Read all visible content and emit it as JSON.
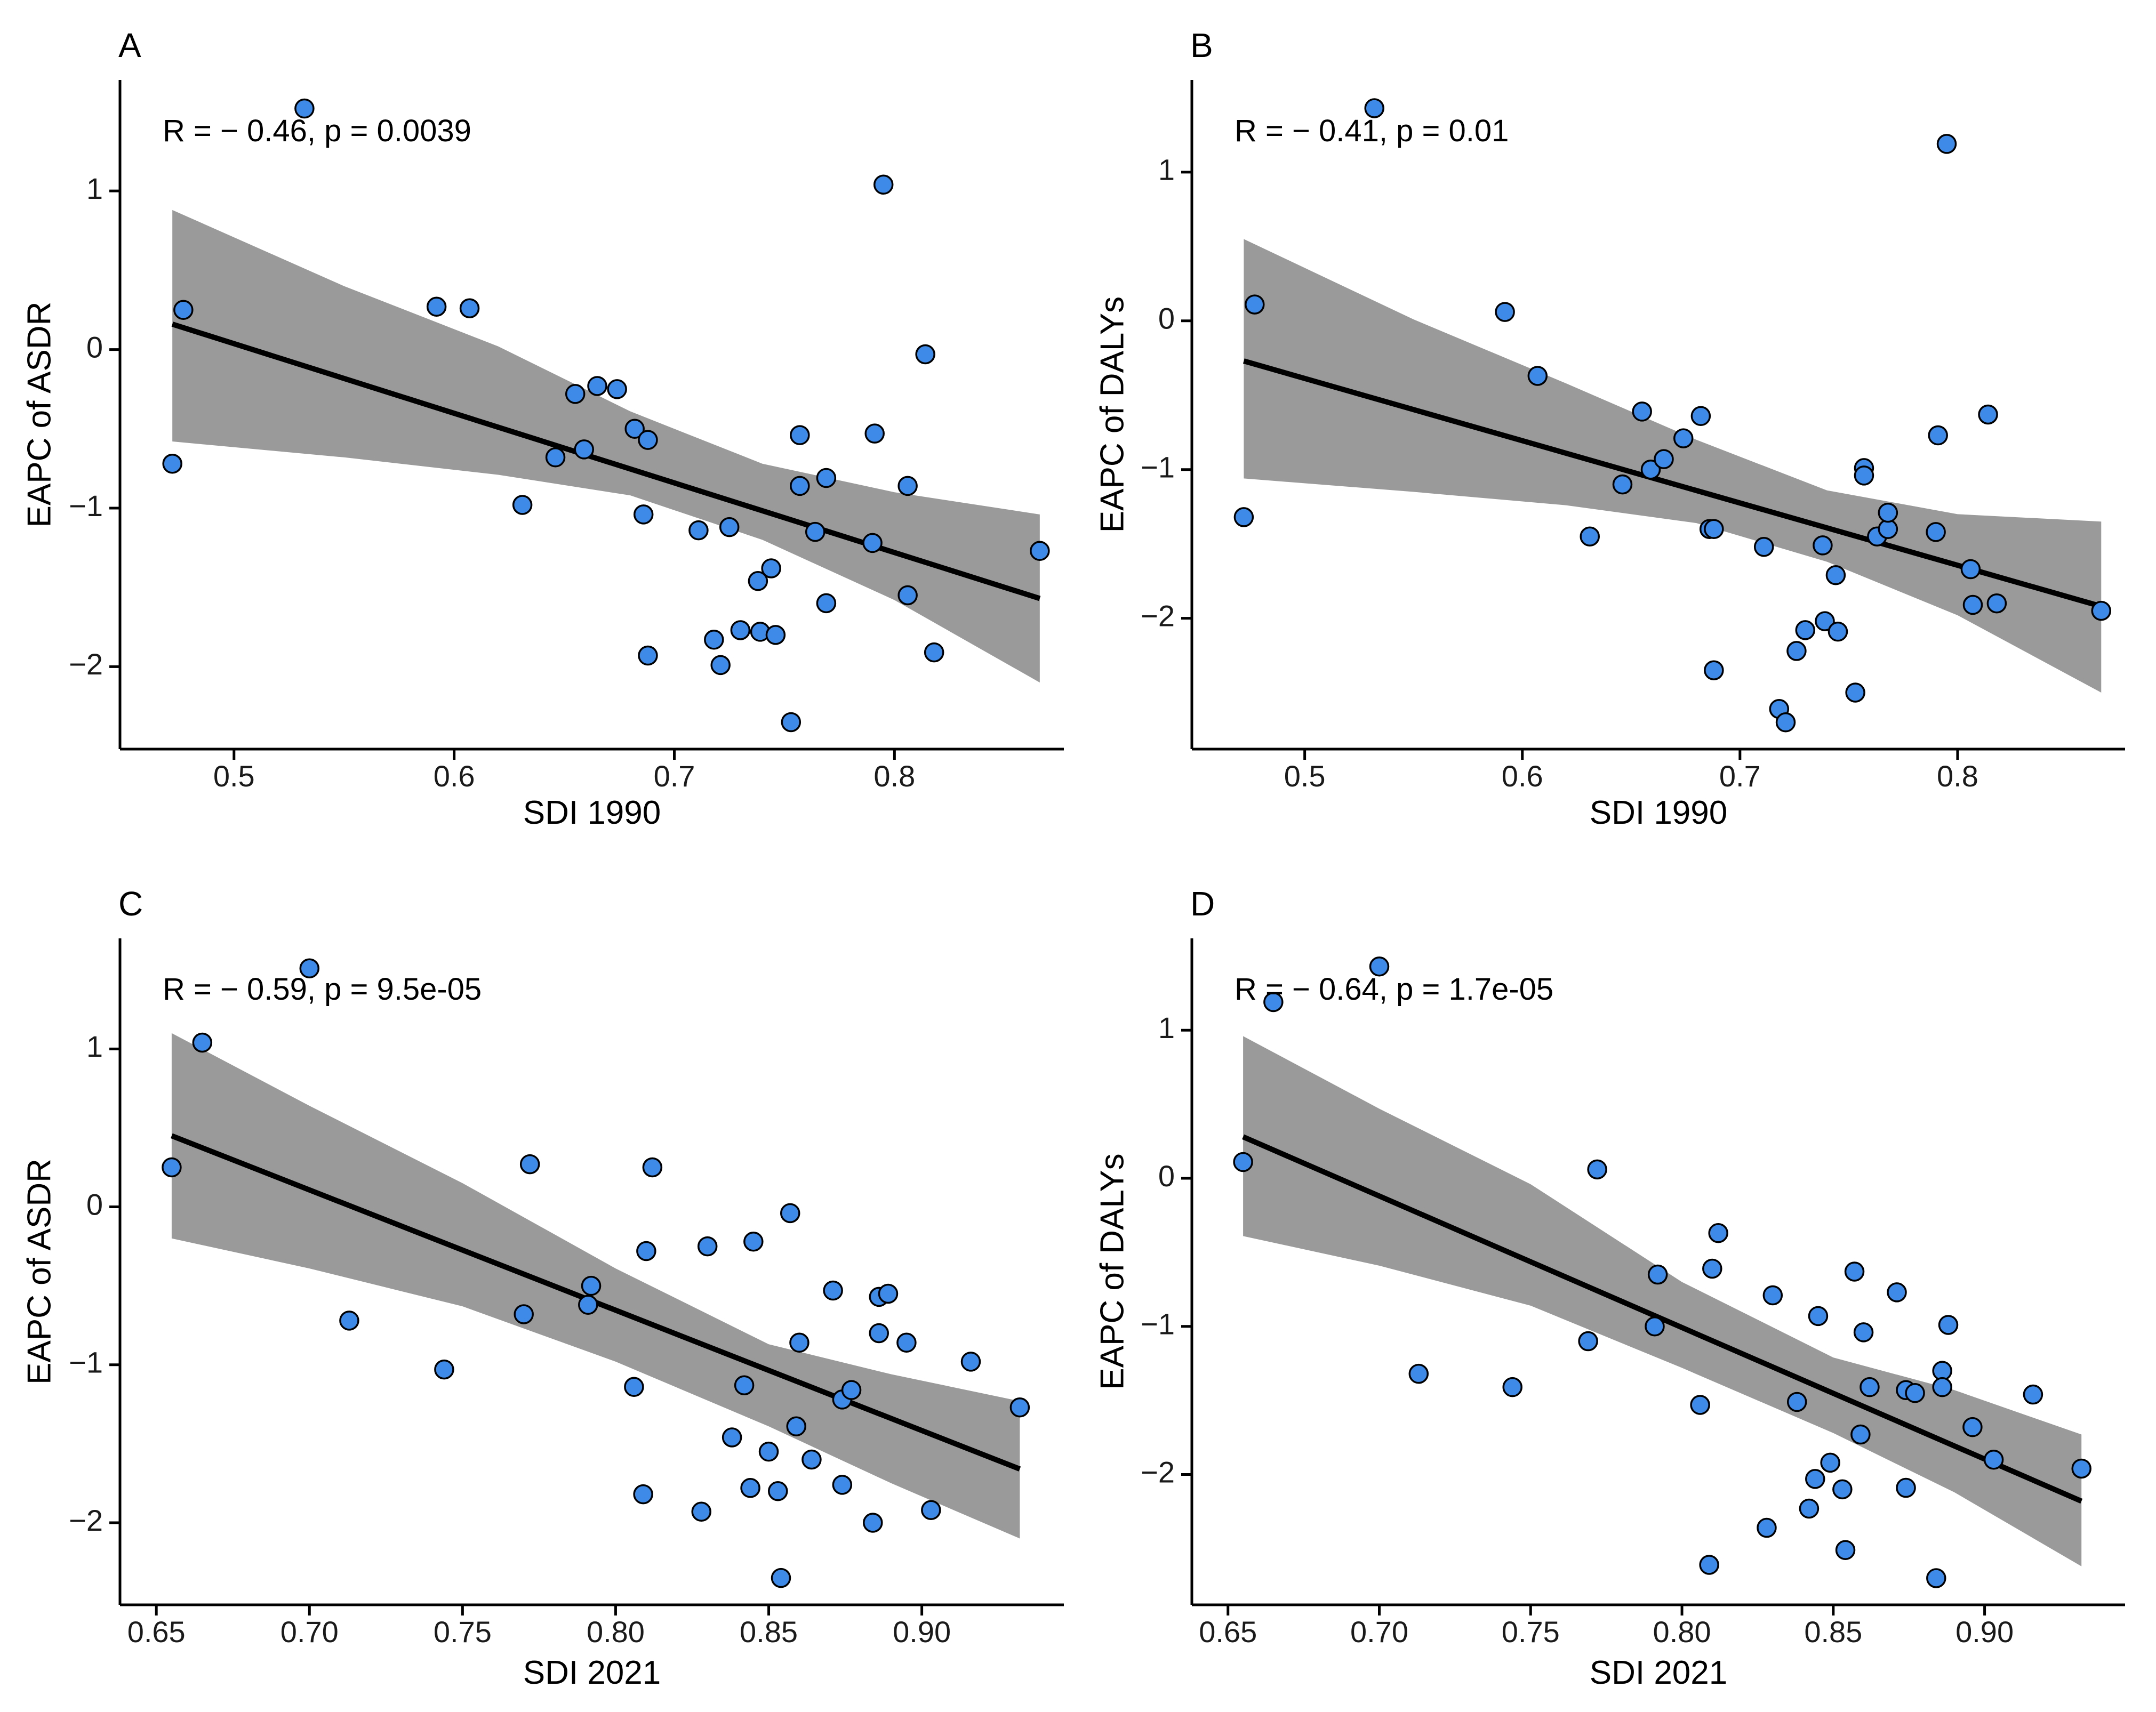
{
  "colors": {
    "point_fill": "#3d8ae8",
    "point_stroke": "#000000",
    "band": "#9a9a9a",
    "line": "#000000"
  },
  "chart_data": [
    {
      "panel": "A",
      "type": "scatter",
      "xlabel": "SDI 1990",
      "ylabel": "EAPC of ASDR",
      "stat_R": "R = − 0.46, ",
      "stat_p": "p = 0.0039",
      "xlim": [
        0.455,
        0.875
      ],
      "ylim": [
        -2.52,
        1.7
      ],
      "xticks": [
        0.5,
        0.6,
        0.7,
        0.8
      ],
      "xticklabels": [
        "0.5",
        "0.6",
        "0.7",
        "0.8"
      ],
      "yticks": [
        -2,
        -1,
        0,
        1
      ],
      "yticklabels": [
        "−2",
        "−1",
        "0",
        "1"
      ],
      "fit": {
        "x": [
          0.472,
          0.866
        ],
        "y": [
          0.16,
          -1.57
        ]
      },
      "ci": {
        "x": [
          0.472,
          0.55,
          0.62,
          0.68,
          0.74,
          0.8,
          0.866
        ],
        "lo": [
          -0.58,
          -0.68,
          -0.79,
          -0.92,
          -1.2,
          -1.58,
          -2.1
        ],
        "hi": [
          0.88,
          0.4,
          0.02,
          -0.39,
          -0.72,
          -0.9,
          -1.04
        ]
      },
      "points": [
        [
          0.532,
          1.52
        ],
        [
          0.472,
          -0.72
        ],
        [
          0.477,
          0.25
        ],
        [
          0.592,
          0.27
        ],
        [
          0.607,
          0.26
        ],
        [
          0.631,
          -0.98
        ],
        [
          0.646,
          -0.68
        ],
        [
          0.655,
          -0.28
        ],
        [
          0.659,
          -0.63
        ],
        [
          0.665,
          -0.23
        ],
        [
          0.674,
          -0.25
        ],
        [
          0.682,
          -0.5
        ],
        [
          0.688,
          -0.57
        ],
        [
          0.686,
          -1.04
        ],
        [
          0.688,
          -1.93
        ],
        [
          0.711,
          -1.14
        ],
        [
          0.718,
          -1.83
        ],
        [
          0.721,
          -1.99
        ],
        [
          0.725,
          -1.12
        ],
        [
          0.73,
          -1.77
        ],
        [
          0.738,
          -1.46
        ],
        [
          0.739,
          -1.78
        ],
        [
          0.744,
          -1.38
        ],
        [
          0.746,
          -1.8
        ],
        [
          0.753,
          -2.35
        ],
        [
          0.757,
          -0.54
        ],
        [
          0.757,
          -0.86
        ],
        [
          0.764,
          -1.15
        ],
        [
          0.769,
          -1.6
        ],
        [
          0.769,
          -0.81
        ],
        [
          0.79,
          -1.22
        ],
        [
          0.791,
          -0.53
        ],
        [
          0.795,
          1.04
        ],
        [
          0.806,
          -0.86
        ],
        [
          0.806,
          -1.55
        ],
        [
          0.814,
          -0.03
        ],
        [
          0.818,
          -1.91
        ],
        [
          0.866,
          -1.27
        ]
      ]
    },
    {
      "panel": "B",
      "type": "scatter",
      "xlabel": "SDI 1990",
      "ylabel": "EAPC of DALYs",
      "stat_R": "R = − 0.41, ",
      "stat_p": "p = 0.01",
      "xlim": [
        0.455,
        0.875
      ],
      "ylim": [
        -2.88,
        1.62
      ],
      "xticks": [
        0.5,
        0.6,
        0.7,
        0.8
      ],
      "xticklabels": [
        "0.5",
        "0.6",
        "0.7",
        "0.8"
      ],
      "yticks": [
        -2,
        -1,
        0,
        1
      ],
      "yticklabels": [
        "−2",
        "−1",
        "0",
        "1"
      ],
      "fit": {
        "x": [
          0.472,
          0.866
        ],
        "y": [
          -0.27,
          -1.92
        ]
      },
      "ci": {
        "x": [
          0.472,
          0.55,
          0.62,
          0.68,
          0.74,
          0.8,
          0.866
        ],
        "lo": [
          -1.06,
          -1.15,
          -1.24,
          -1.36,
          -1.62,
          -1.98,
          -2.5
        ],
        "hi": [
          0.55,
          0.01,
          -0.42,
          -0.8,
          -1.14,
          -1.3,
          -1.35
        ]
      },
      "points": [
        [
          0.532,
          1.43
        ],
        [
          0.472,
          -1.32
        ],
        [
          0.477,
          0.11
        ],
        [
          0.592,
          0.06
        ],
        [
          0.607,
          -0.37
        ],
        [
          0.631,
          -1.45
        ],
        [
          0.646,
          -1.1
        ],
        [
          0.655,
          -0.61
        ],
        [
          0.659,
          -1.0
        ],
        [
          0.665,
          -0.93
        ],
        [
          0.674,
          -0.79
        ],
        [
          0.682,
          -0.64
        ],
        [
          0.686,
          -1.4
        ],
        [
          0.688,
          -1.4
        ],
        [
          0.688,
          -2.35
        ],
        [
          0.711,
          -1.52
        ],
        [
          0.718,
          -2.61
        ],
        [
          0.721,
          -2.7
        ],
        [
          0.726,
          -2.22
        ],
        [
          0.73,
          -2.08
        ],
        [
          0.738,
          -1.51
        ],
        [
          0.739,
          -2.02
        ],
        [
          0.744,
          -1.71
        ],
        [
          0.745,
          -2.09
        ],
        [
          0.753,
          -2.5
        ],
        [
          0.757,
          -0.99
        ],
        [
          0.757,
          -1.04
        ],
        [
          0.763,
          -1.45
        ],
        [
          0.768,
          -1.4
        ],
        [
          0.768,
          -1.29
        ],
        [
          0.79,
          -1.42
        ],
        [
          0.791,
          -0.77
        ],
        [
          0.795,
          1.19
        ],
        [
          0.806,
          -1.67
        ],
        [
          0.807,
          -1.91
        ],
        [
          0.814,
          -0.63
        ],
        [
          0.818,
          -1.9
        ],
        [
          0.866,
          -1.95
        ]
      ]
    },
    {
      "panel": "C",
      "type": "scatter",
      "xlabel": "SDI 2021",
      "ylabel": "EAPC of ASDR",
      "stat_R": "R = − 0.59, ",
      "stat_p": "p = 9.5e-05",
      "xlim": [
        0.643,
        0.945
      ],
      "ylim": [
        -2.52,
        1.7
      ],
      "xticks": [
        0.65,
        0.7,
        0.75,
        0.8,
        0.85,
        0.9
      ],
      "xticklabels": [
        "0.65",
        "0.70",
        "0.75",
        "0.80",
        "0.85",
        "0.90"
      ],
      "yticks": [
        -2,
        -1,
        0,
        1
      ],
      "yticklabels": [
        "−2",
        "−1",
        "0",
        "1"
      ],
      "fit": {
        "x": [
          0.655,
          0.932
        ],
        "y": [
          0.45,
          -1.66
        ]
      },
      "ci": {
        "x": [
          0.655,
          0.7,
          0.75,
          0.8,
          0.85,
          0.89,
          0.932
        ],
        "lo": [
          -0.2,
          -0.39,
          -0.63,
          -0.98,
          -1.39,
          -1.75,
          -2.1
        ],
        "hi": [
          1.1,
          0.64,
          0.15,
          -0.39,
          -0.87,
          -1.06,
          -1.23
        ]
      },
      "points": [
        [
          0.7,
          1.51
        ],
        [
          0.665,
          1.04
        ],
        [
          0.655,
          0.25
        ],
        [
          0.713,
          -0.72
        ],
        [
          0.744,
          -1.03
        ],
        [
          0.77,
          -0.68
        ],
        [
          0.772,
          0.27
        ],
        [
          0.791,
          -0.62
        ],
        [
          0.792,
          -0.5
        ],
        [
          0.806,
          -1.14
        ],
        [
          0.809,
          -1.82
        ],
        [
          0.81,
          -0.28
        ],
        [
          0.812,
          0.25
        ],
        [
          0.828,
          -1.93
        ],
        [
          0.83,
          -0.25
        ],
        [
          0.838,
          -1.46
        ],
        [
          0.842,
          -1.13
        ],
        [
          0.844,
          -1.78
        ],
        [
          0.845,
          -0.22
        ],
        [
          0.85,
          -1.55
        ],
        [
          0.853,
          -1.8
        ],
        [
          0.854,
          -2.35
        ],
        [
          0.857,
          -0.04
        ],
        [
          0.859,
          -1.39
        ],
        [
          0.86,
          -0.86
        ],
        [
          0.864,
          -1.6
        ],
        [
          0.871,
          -0.53
        ],
        [
          0.874,
          -1.22
        ],
        [
          0.874,
          -1.76
        ],
        [
          0.877,
          -1.16
        ],
        [
          0.884,
          -2.0
        ],
        [
          0.886,
          -0.8
        ],
        [
          0.886,
          -0.57
        ],
        [
          0.889,
          -0.55
        ],
        [
          0.895,
          -0.86
        ],
        [
          0.903,
          -1.92
        ],
        [
          0.916,
          -0.98
        ],
        [
          0.932,
          -1.27
        ]
      ]
    },
    {
      "panel": "D",
      "type": "scatter",
      "xlabel": "SDI 2021",
      "ylabel": "EAPC of DALYs",
      "stat_R": "R = − 0.64, ",
      "stat_p": "p = 1.7e-05",
      "xlim": [
        0.643,
        0.945
      ],
      "ylim": [
        -2.88,
        1.62
      ],
      "xticks": [
        0.65,
        0.7,
        0.75,
        0.8,
        0.85,
        0.9
      ],
      "xticklabels": [
        "0.65",
        "0.70",
        "0.75",
        "0.80",
        "0.85",
        "0.90"
      ],
      "yticks": [
        -2,
        -1,
        0,
        1
      ],
      "yticklabels": [
        "−2",
        "−1",
        "0",
        "1"
      ],
      "fit": {
        "x": [
          0.655,
          0.932
        ],
        "y": [
          0.28,
          -2.18
        ]
      },
      "ci": {
        "x": [
          0.655,
          0.7,
          0.75,
          0.8,
          0.85,
          0.89,
          0.932
        ],
        "lo": [
          -0.39,
          -0.59,
          -0.86,
          -1.28,
          -1.72,
          -2.12,
          -2.62
        ],
        "hi": [
          0.96,
          0.47,
          -0.04,
          -0.7,
          -1.21,
          -1.43,
          -1.73
        ]
      },
      "points": [
        [
          0.7,
          1.43
        ],
        [
          0.665,
          1.19
        ],
        [
          0.655,
          0.11
        ],
        [
          0.713,
          -1.32
        ],
        [
          0.744,
          -1.41
        ],
        [
          0.769,
          -1.1
        ],
        [
          0.772,
          0.06
        ],
        [
          0.791,
          -1.0
        ],
        [
          0.792,
          -0.65
        ],
        [
          0.806,
          -1.53
        ],
        [
          0.809,
          -2.61
        ],
        [
          0.81,
          -0.61
        ],
        [
          0.812,
          -0.37
        ],
        [
          0.828,
          -2.36
        ],
        [
          0.83,
          -0.79
        ],
        [
          0.838,
          -1.51
        ],
        [
          0.842,
          -2.23
        ],
        [
          0.844,
          -2.03
        ],
        [
          0.845,
          -0.93
        ],
        [
          0.849,
          -1.92
        ],
        [
          0.853,
          -2.1
        ],
        [
          0.854,
          -2.51
        ],
        [
          0.857,
          -0.63
        ],
        [
          0.859,
          -1.73
        ],
        [
          0.86,
          -1.04
        ],
        [
          0.862,
          -1.41
        ],
        [
          0.871,
          -0.77
        ],
        [
          0.874,
          -1.43
        ],
        [
          0.874,
          -2.09
        ],
        [
          0.877,
          -1.45
        ],
        [
          0.884,
          -2.7
        ],
        [
          0.886,
          -1.3
        ],
        [
          0.886,
          -1.41
        ],
        [
          0.888,
          -0.99
        ],
        [
          0.896,
          -1.68
        ],
        [
          0.903,
          -1.9
        ],
        [
          0.916,
          -1.46
        ],
        [
          0.932,
          -1.96
        ]
      ]
    }
  ]
}
